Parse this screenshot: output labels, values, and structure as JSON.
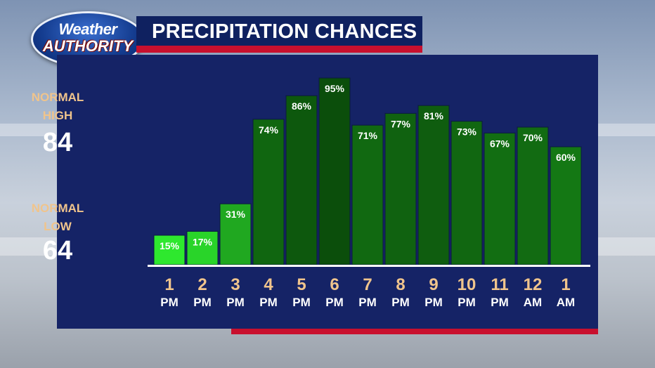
{
  "title": "PRECIPITATION CHANCES",
  "logo": {
    "line1": "Weather",
    "line2": "AUTHORITY"
  },
  "normals": {
    "high_label_1": "NORMAL",
    "high_label_2": "HIGH",
    "high_value": "84",
    "low_label_1": "NORMAL",
    "low_label_2": "LOW",
    "low_value": "64"
  },
  "colors": {
    "panel": "#152366",
    "accent_red": "#c8102e",
    "label_tan": "#f0c48c",
    "bar_low": "#2ee82e",
    "bar_high": "#0b4e0b"
  },
  "chart_data": {
    "type": "bar",
    "categories": [
      {
        "num": "1",
        "ampm": "PM"
      },
      {
        "num": "2",
        "ampm": "PM"
      },
      {
        "num": "3",
        "ampm": "PM"
      },
      {
        "num": "4",
        "ampm": "PM"
      },
      {
        "num": "5",
        "ampm": "PM"
      },
      {
        "num": "6",
        "ampm": "PM"
      },
      {
        "num": "7",
        "ampm": "PM"
      },
      {
        "num": "8",
        "ampm": "PM"
      },
      {
        "num": "9",
        "ampm": "PM"
      },
      {
        "num": "10",
        "ampm": "PM"
      },
      {
        "num": "11",
        "ampm": "PM"
      },
      {
        "num": "12",
        "ampm": "AM"
      },
      {
        "num": "1",
        "ampm": "AM"
      }
    ],
    "values": [
      15,
      17,
      31,
      74,
      86,
      95,
      71,
      77,
      81,
      73,
      67,
      70,
      60
    ],
    "labels": [
      "15%",
      "17%",
      "31%",
      "74%",
      "86%",
      "95%",
      "71%",
      "77%",
      "81%",
      "73%",
      "67%",
      "70%",
      "60%"
    ],
    "ylim": [
      0,
      100
    ],
    "grid": false,
    "legend": "none"
  }
}
